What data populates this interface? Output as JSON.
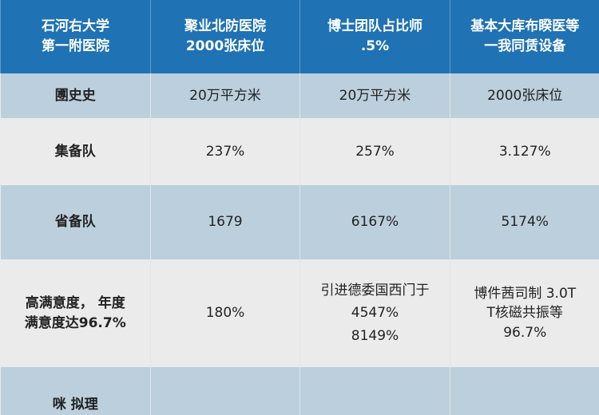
{
  "table": {
    "header": [
      [
        "石河右大学",
        "第一附医院"
      ],
      [
        "聚业北防医院",
        "2000张床位"
      ],
      [
        "博士团队占比师",
        ".5%"
      ],
      [
        "基本大库布睽医等",
        "一我同赁设备"
      ]
    ],
    "rows": [
      {
        "label": [
          "圑史史"
        ],
        "cells": [
          [
            "20万平方米"
          ],
          [
            "20万平方米"
          ],
          [
            "2000张床位"
          ]
        ]
      },
      {
        "label": [
          "集备队"
        ],
        "cells": [
          [
            "237%"
          ],
          [
            "257%"
          ],
          [
            "3.127%"
          ]
        ]
      },
      {
        "label": [
          "省备队"
        ],
        "cells": [
          [
            "1679"
          ],
          [
            "6167%"
          ],
          [
            "5174%"
          ]
        ]
      },
      {
        "label": [
          "高满意度， 年度",
          "满意度达96.7%"
        ],
        "cells": [
          [
            "180%"
          ],
          [
            "引进德委国西门于",
            "4547%",
            "8149%"
          ],
          [
            "博件茜司制 3.0T",
            "T核磁共振等",
            "96.7%"
          ]
        ]
      },
      {
        "label": [
          "咪 拟理"
        ],
        "cells": [
          [],
          [],
          []
        ]
      }
    ]
  },
  "colors": {
    "header": "#1f72b4",
    "row_blue": "#bccfdd",
    "row_gray": "#ebebeb"
  }
}
